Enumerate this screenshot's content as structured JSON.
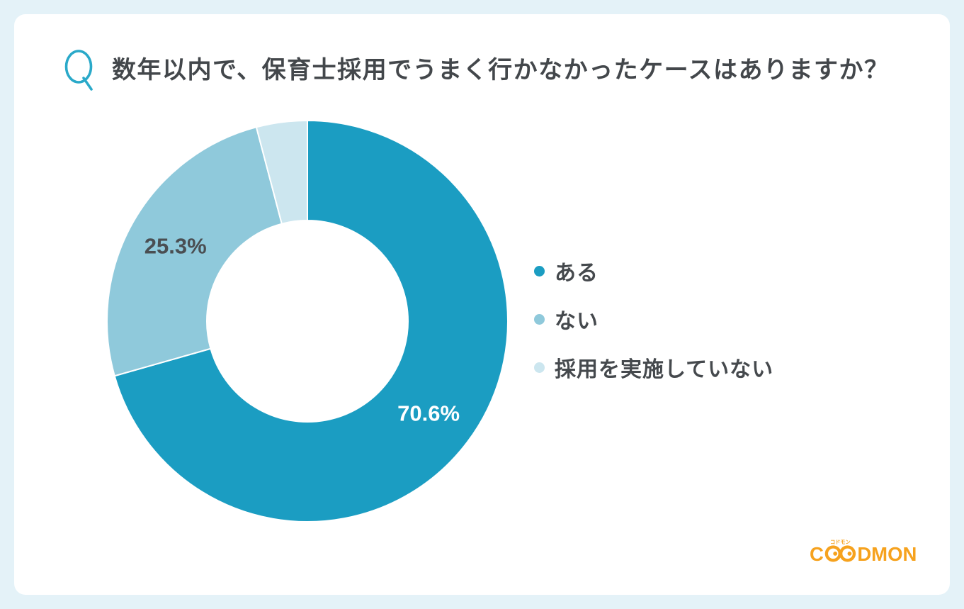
{
  "header": {
    "q_mark": "Q",
    "title": "数年以内で、保育士採用でうまく行かなかったケースはありますか？"
  },
  "chart_data": {
    "type": "pie",
    "subtype": "donut",
    "title": "数年以内で、保育士採用でうまく行かなかったケースはありますか？",
    "categories": [
      "ある",
      "ない",
      "採用を実施していない"
    ],
    "values": [
      70.6,
      25.3,
      4.1
    ],
    "unit": "%",
    "data_labels": [
      "70.6%",
      "25.3%",
      ""
    ],
    "colors": [
      "#1B9DC2",
      "#8FC9DB",
      "#CCE6EF"
    ],
    "data_label_colors": [
      "#FFFFFF",
      "#4A4E52",
      ""
    ],
    "legend_position": "right",
    "start_angle_deg": 0,
    "direction": "clockwise",
    "donut_hole_ratio": 0.5
  },
  "logo": {
    "text": "CODMON",
    "part_c": "C",
    "part_dmon": "DMON",
    "sub": "コドモン",
    "color": "#F6A21E"
  },
  "colors": {
    "page_background": "#E4F2F8",
    "card_background": "#FFFFFF",
    "accent": "#1B9DC2",
    "q_mark": "#2AA9C9",
    "title_text": "#43474B",
    "legend_text": "#45494D"
  }
}
